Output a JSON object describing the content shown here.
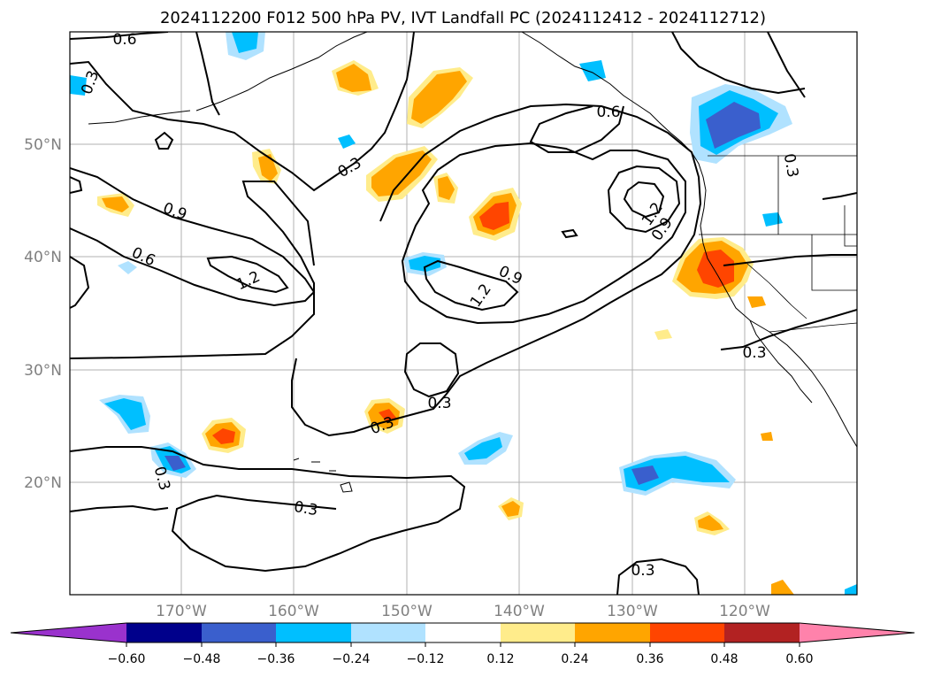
{
  "title": "2024112200 F012 500 hPa PV, IVT Landfall PC (2024112412 - 2024112712)",
  "lat_labels": [
    "50°N",
    "40°N",
    "30°N",
    "20°N"
  ],
  "lon_labels": [
    "170°W",
    "160°W",
    "150°W",
    "140°W",
    "130°W",
    "120°W"
  ],
  "contour_labels": [
    "0.6",
    "0.3",
    "0.9",
    "0.6",
    "1.2",
    "0.3",
    "0.9",
    "1.2",
    "0.6",
    "1.2",
    "0.9",
    "0.3",
    "0.3",
    "0.3",
    "0.3",
    "0.3",
    "0.3",
    "0.3"
  ],
  "colorbar": {
    "tick_labels": [
      "−0.60",
      "−0.48",
      "−0.36",
      "−0.24",
      "−0.12",
      "0.12",
      "0.24",
      "0.36",
      "0.48",
      "0.60"
    ],
    "colors": [
      "#9a32cd",
      "#00008b",
      "#3a5fcd",
      "#00bfff",
      "#b0e2ff",
      "#ffffff",
      "#ffec8b",
      "#ffa500",
      "#ff4500",
      "#b22222",
      "#ff82ab"
    ]
  },
  "colors": {
    "neg_light": "#b0e2ff",
    "neg_mid": "#00bfff",
    "neg_dark": "#3a5fcd",
    "pos_light": "#ffec8b",
    "pos_mid": "#ffa500",
    "pos_dark": "#ff4500"
  }
}
